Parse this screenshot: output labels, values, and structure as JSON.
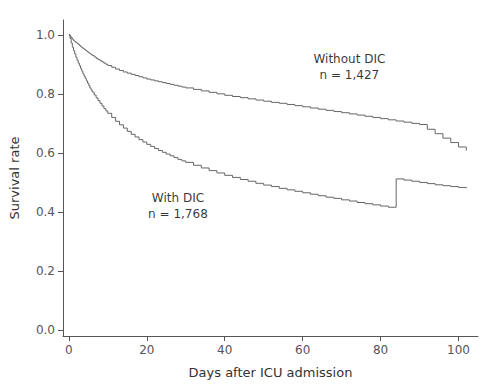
{
  "chart_data": {
    "type": "step",
    "xlabel": "Days after ICU admission",
    "ylabel": "Survival rate",
    "xlim": [
      -1.5,
      105
    ],
    "ylim": [
      -0.02,
      1.05
    ],
    "xticks": [
      0,
      20,
      40,
      60,
      80,
      100
    ],
    "yticks": [
      {
        "value": 0,
        "label": "0.0"
      },
      0.2,
      0.4,
      0.6,
      0.8,
      {
        "value": 1,
        "label": "1.0"
      }
    ],
    "grid": false,
    "annotations": [
      {
        "text": "Without DIC\nn = 1,427",
        "x": 72,
        "y": 0.89
      },
      {
        "text": "With DIC\nn = 1,768",
        "x": 28,
        "y": 0.42
      }
    ],
    "series": [
      {
        "color": "#666666",
        "x": [
          0,
          0.3,
          0.6,
          0.9,
          1.2,
          1.5,
          1.8,
          2.1,
          2.4,
          2.7,
          3.0,
          3.3,
          3.6,
          3.9,
          4.2,
          4.5,
          4.8,
          5.1,
          5.4,
          5.7,
          6.0,
          6.5,
          7.0,
          7.5,
          8.0,
          8.5,
          9.0,
          9.5,
          10,
          11,
          12,
          13,
          14,
          15,
          16,
          17,
          18,
          19,
          20,
          21,
          22,
          23,
          24,
          25,
          26,
          27,
          28,
          29,
          30,
          32,
          34,
          36,
          38,
          40,
          42,
          44,
          46,
          48,
          50,
          52,
          54,
          56,
          58,
          60,
          62,
          64,
          66,
          68,
          70,
          72,
          74,
          76,
          78,
          80,
          82,
          84,
          86,
          88,
          90,
          92,
          94,
          96,
          98,
          100,
          102
        ],
        "values": [
          1.0,
          0.995,
          0.99,
          0.985,
          0.98,
          0.977,
          0.974,
          0.971,
          0.968,
          0.964,
          0.96,
          0.957,
          0.954,
          0.951,
          0.948,
          0.945,
          0.942,
          0.939,
          0.936,
          0.933,
          0.93,
          0.925,
          0.92,
          0.916,
          0.912,
          0.908,
          0.904,
          0.9,
          0.896,
          0.89,
          0.884,
          0.879,
          0.874,
          0.87,
          0.866,
          0.862,
          0.858,
          0.854,
          0.85,
          0.847,
          0.844,
          0.841,
          0.838,
          0.835,
          0.832,
          0.829,
          0.826,
          0.823,
          0.82,
          0.815,
          0.81,
          0.805,
          0.8,
          0.795,
          0.791,
          0.787,
          0.783,
          0.779,
          0.775,
          0.771,
          0.768,
          0.764,
          0.76,
          0.756,
          0.752,
          0.748,
          0.744,
          0.74,
          0.736,
          0.732,
          0.728,
          0.724,
          0.72,
          0.716,
          0.712,
          0.708,
          0.704,
          0.7,
          0.696,
          0.68,
          0.665,
          0.65,
          0.635,
          0.62,
          0.608
        ]
      },
      {
        "color": "#666666",
        "x": [
          0,
          0.3,
          0.6,
          0.9,
          1.2,
          1.5,
          1.8,
          2.1,
          2.4,
          2.7,
          3.0,
          3.3,
          3.6,
          3.9,
          4.2,
          4.5,
          4.8,
          5.1,
          5.4,
          5.7,
          6.0,
          6.5,
          7.0,
          7.5,
          8.0,
          8.5,
          9.0,
          9.5,
          10,
          11,
          12,
          13,
          14,
          15,
          16,
          17,
          18,
          19,
          20,
          21,
          22,
          23,
          24,
          25,
          26,
          27,
          28,
          29,
          30,
          32,
          34,
          36,
          38,
          40,
          42,
          44,
          46,
          48,
          50,
          52,
          54,
          56,
          58,
          60,
          62,
          64,
          66,
          68,
          70,
          72,
          74,
          76,
          78,
          80,
          82,
          84,
          86,
          88,
          90,
          92,
          94,
          96,
          98,
          100,
          102
        ],
        "values": [
          1.0,
          0.988,
          0.972,
          0.958,
          0.946,
          0.935,
          0.924,
          0.914,
          0.904,
          0.895,
          0.886,
          0.877,
          0.868,
          0.86,
          0.852,
          0.844,
          0.836,
          0.828,
          0.82,
          0.813,
          0.806,
          0.796,
          0.786,
          0.777,
          0.768,
          0.759,
          0.75,
          0.742,
          0.734,
          0.72,
          0.707,
          0.695,
          0.684,
          0.673,
          0.663,
          0.654,
          0.645,
          0.637,
          0.629,
          0.622,
          0.615,
          0.608,
          0.602,
          0.596,
          0.59,
          0.584,
          0.578,
          0.573,
          0.568,
          0.558,
          0.549,
          0.54,
          0.532,
          0.524,
          0.517,
          0.51,
          0.504,
          0.497,
          0.491,
          0.486,
          0.48,
          0.475,
          0.47,
          0.465,
          0.46,
          0.455,
          0.45,
          0.446,
          0.441,
          0.437,
          0.432,
          0.428,
          0.424,
          0.42,
          0.416,
          0.512,
          0.508,
          0.504,
          0.5,
          0.496,
          0.492,
          0.489,
          0.486,
          0.483,
          0.48
        ]
      }
    ]
  }
}
